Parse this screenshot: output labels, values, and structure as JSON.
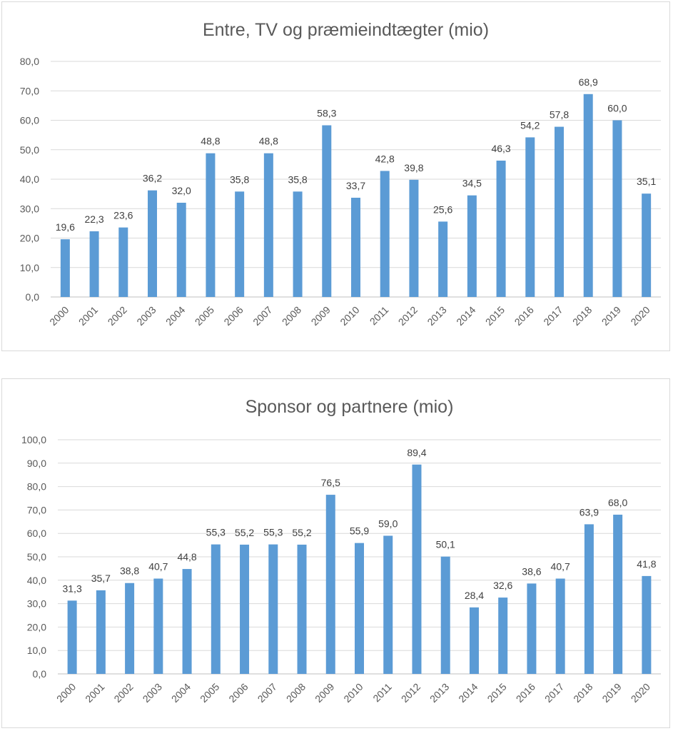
{
  "chart_data": [
    {
      "type": "bar",
      "title": "Entre, TV og præmieindtægter (mio)",
      "xlabel": "",
      "ylabel": "",
      "ylim": [
        0,
        80
      ],
      "ytick_step": 10,
      "ytick_labels": [
        "0,0",
        "10,0",
        "20,0",
        "30,0",
        "40,0",
        "50,0",
        "60,0",
        "70,0",
        "80,0"
      ],
      "grid": true,
      "legend": "none",
      "bar_color": "#5b9bd5",
      "categories": [
        "2000",
        "2001",
        "2002",
        "2003",
        "2004",
        "2005",
        "2006",
        "2007",
        "2008",
        "2009",
        "2010",
        "2011",
        "2012",
        "2013",
        "2014",
        "2015",
        "2016",
        "2017",
        "2018",
        "2019",
        "2020"
      ],
      "values": [
        19.6,
        22.3,
        23.6,
        36.2,
        32.0,
        48.8,
        35.8,
        48.8,
        35.8,
        58.3,
        33.7,
        42.8,
        39.8,
        25.6,
        34.5,
        46.3,
        54.2,
        57.8,
        68.9,
        60.0,
        35.1
      ],
      "value_labels": [
        "19,6",
        "22,3",
        "23,6",
        "36,2",
        "32,0",
        "48,8",
        "35,8",
        "48,8",
        "35,8",
        "58,3",
        "33,7",
        "42,8",
        "39,8",
        "25,6",
        "34,5",
        "46,3",
        "54,2",
        "57,8",
        "68,9",
        "60,0",
        "35,1"
      ]
    },
    {
      "type": "bar",
      "title": "Sponsor og partnere (mio)",
      "xlabel": "",
      "ylabel": "",
      "ylim": [
        0,
        100
      ],
      "ytick_step": 10,
      "ytick_labels": [
        "0,0",
        "10,0",
        "20,0",
        "30,0",
        "40,0",
        "50,0",
        "60,0",
        "70,0",
        "80,0",
        "90,0",
        "100,0"
      ],
      "grid": true,
      "legend": "none",
      "bar_color": "#5b9bd5",
      "categories": [
        "2000",
        "2001",
        "2002",
        "2003",
        "2004",
        "2005",
        "2006",
        "2007",
        "2008",
        "2009",
        "2010",
        "2011",
        "2012",
        "2013",
        "2014",
        "2015",
        "2016",
        "2017",
        "2018",
        "2019",
        "2020"
      ],
      "values": [
        31.3,
        35.7,
        38.8,
        40.7,
        44.8,
        55.3,
        55.2,
        55.3,
        55.2,
        76.5,
        55.9,
        59.0,
        89.4,
        50.1,
        28.4,
        32.6,
        38.6,
        40.7,
        63.9,
        68.0,
        41.8
      ],
      "value_labels": [
        "31,3",
        "35,7",
        "38,8",
        "40,7",
        "44,8",
        "55,3",
        "55,2",
        "55,3",
        "55,2",
        "76,5",
        "55,9",
        "59,0",
        "89,4",
        "50,1",
        "28,4",
        "32,6",
        "38,6",
        "40,7",
        "63,9",
        "68,0",
        "41,8"
      ]
    }
  ]
}
